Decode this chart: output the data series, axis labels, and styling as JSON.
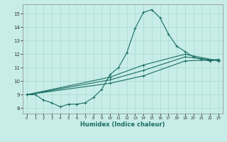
{
  "xlabel": "Humidex (Indice chaleur)",
  "background_color": "#c8ede8",
  "grid_color": "#a8d8d0",
  "line_color": "#1a6e64",
  "xlim_min": -0.5,
  "xlim_max": 23.5,
  "ylim_min": 7.6,
  "ylim_max": 15.7,
  "xticks": [
    0,
    1,
    2,
    3,
    4,
    5,
    6,
    7,
    8,
    9,
    10,
    11,
    12,
    13,
    14,
    15,
    16,
    17,
    18,
    19,
    20,
    21,
    22,
    23
  ],
  "yticks": [
    8,
    9,
    10,
    11,
    12,
    13,
    14,
    15
  ],
  "main_x": [
    0,
    1,
    2,
    3,
    4,
    5,
    6,
    7,
    8,
    9,
    10,
    11,
    12,
    13,
    14,
    15,
    16,
    17,
    18,
    19,
    20,
    21,
    22,
    23
  ],
  "main_y": [
    9.0,
    9.0,
    8.6,
    8.4,
    8.1,
    8.3,
    8.3,
    8.4,
    8.8,
    9.4,
    10.5,
    11.0,
    12.1,
    13.9,
    15.1,
    15.3,
    14.7,
    13.5,
    12.6,
    12.2,
    11.8,
    11.6,
    11.5,
    11.6
  ],
  "linear1_x": [
    0,
    10,
    14,
    19,
    23
  ],
  "linear1_y": [
    9.0,
    9.85,
    10.4,
    11.5,
    11.6
  ],
  "linear2_x": [
    0,
    10,
    14,
    19,
    23
  ],
  "linear2_y": [
    9.0,
    10.1,
    10.8,
    11.8,
    11.55
  ],
  "linear3_x": [
    0,
    10,
    14,
    19,
    23
  ],
  "linear3_y": [
    9.0,
    10.3,
    11.2,
    12.0,
    11.5
  ]
}
